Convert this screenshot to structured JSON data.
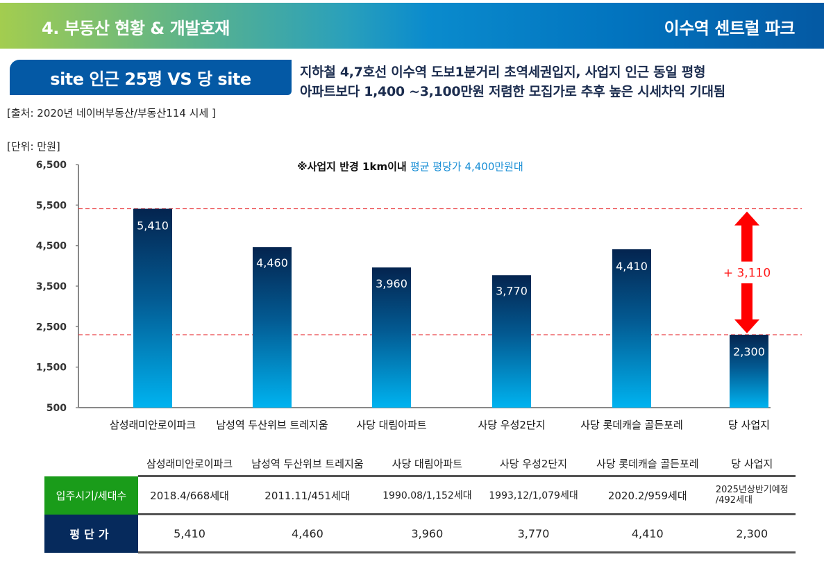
{
  "header": {
    "title": "4. 부동산 현황 & 개발호재",
    "project": "이수역 센트럴 파크"
  },
  "badge": {
    "label": "site 인근 25평 VS 당 site"
  },
  "headline": {
    "line1": "지하철 4,7호선 이수역 도보1분거리 초역세권입지, 사업지 인근 동일 평형",
    "line2": "아파트보다 1,400 ~3,100만원 저렴한 모집가로 추후 높은 시세차익 기대됨"
  },
  "source": "[출처: 2020년 네이버부동산/부동산114 시세 ]",
  "unit": "[단위: 만원]",
  "note": {
    "prefix": "※사업지 반경 1km이내 ",
    "highlight": "평균 평당가 4,400만원대",
    "highlight_color": "#1a8fd6"
  },
  "colors": {
    "bar_top": "#04244f",
    "bar_bottom": "#00b3f0",
    "reference_line": "#e8262a",
    "arrow": "#ff0000"
  },
  "chart_data": {
    "type": "bar",
    "title": "",
    "xlabel": "",
    "ylabel": "만원",
    "ylim": [
      500,
      6500
    ],
    "yticks": [
      500,
      1500,
      2500,
      3500,
      4500,
      5500,
      6500
    ],
    "ytick_labels": [
      "500",
      "1,500",
      "2,500",
      "3,500",
      "4,500",
      "5,500",
      "6,500"
    ],
    "categories": [
      "삼성래미안로이파크",
      "남성역 두산위브 트레지움",
      "사당 대림아파트",
      "사당 우성2단지",
      "사당 롯데캐슬 골든포레",
      "당 사업지"
    ],
    "values": [
      5410,
      4460,
      3960,
      3770,
      4410,
      2300
    ],
    "value_labels": [
      "5,410",
      "4,460",
      "3,960",
      "3,770",
      "4,410",
      "2,300"
    ],
    "reference_lines": [
      5410,
      2300
    ],
    "difference_annotation": "+ 3,110",
    "grid": false,
    "legend": "none"
  },
  "table": {
    "headers": [
      "삼성래미안로이파크",
      "남성역 두산위브 트레지움",
      "사당 대림아파트",
      "사당 우성2단지",
      "사당 롯데캐슬 골든포레",
      "당 사업지"
    ],
    "rows": [
      {
        "label": "입주시기/세대수",
        "cells": [
          "2018.4/668세대",
          "2011.11/451세대",
          "1990.08/1,152세대",
          "1993,12/1,079세대",
          "2020.2/959세대"
        ],
        "last_line1": "2025년상반기예정",
        "last_line2": "/492세대"
      },
      {
        "label": "평단가",
        "cells": [
          "5,410",
          "4,460",
          "3,960",
          "3,770",
          "4,410",
          "2,300"
        ]
      }
    ]
  }
}
